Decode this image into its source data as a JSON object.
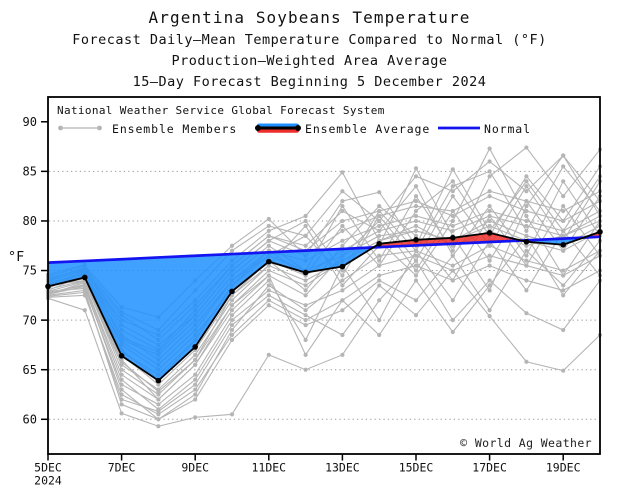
{
  "header": {
    "title": "Argentina Soybeans Temperature",
    "subtitle1": "Forecast Daily–Mean Temperature Compared to Normal (°F)",
    "subtitle2": "Production–Weighted Area Average",
    "subtitle3": "15–Day Forecast Beginning 5 December 2024"
  },
  "legend": {
    "system_label": "National Weather Service Global Forecast System",
    "members_label": "Ensemble Members",
    "average_label": "Ensemble Average",
    "normal_label": "Normal"
  },
  "footer": {
    "copyright": "© World Ag Weather"
  },
  "chart_data": {
    "type": "line",
    "title": "Argentina Soybeans Temperature",
    "subtitle": "Forecast Daily–Mean Temperature Compared to Normal (°F), Production–Weighted Area Average, 15–Day Forecast Beginning 5 December 2024",
    "xlabel": "",
    "ylabel": "°F",
    "xlim": [
      5,
      20
    ],
    "ylim": [
      56.5,
      92.5
    ],
    "grid": "horizontal-dotted",
    "legend_position": "top-left-inside",
    "x_days": [
      5,
      6,
      7,
      8,
      9,
      10,
      11,
      12,
      13,
      14,
      15,
      16,
      17,
      18,
      19,
      20
    ],
    "x_tick_days": [
      5,
      7,
      9,
      11,
      13,
      15,
      17,
      19
    ],
    "x_tick_labels": [
      "5DEC",
      "7DEC",
      "9DEC",
      "11DEC",
      "13DEC",
      "15DEC",
      "17DEC",
      "19DEC"
    ],
    "x_year_label": "2024",
    "y_ticks": [
      60,
      65,
      70,
      75,
      80,
      85,
      90
    ],
    "y_tick_labels": [
      "60",
      "65",
      "70",
      "75",
      "80",
      "85",
      "90"
    ],
    "grid_y": [
      60,
      65,
      70,
      75,
      80,
      85
    ],
    "fill_opacity": 0.85,
    "colors": {
      "members": "#b5b5b5",
      "average": "#000000",
      "normal": "#1414f0",
      "above_fill": "#ee2e2c",
      "below_fill": "#1e90ff",
      "grid": "#9a9a9a",
      "frame": "#000000"
    },
    "series": {
      "normal": {
        "name": "Normal",
        "values": [
          75.8,
          75.97,
          76.14,
          76.32,
          76.49,
          76.66,
          76.84,
          77.01,
          77.18,
          77.36,
          77.53,
          77.7,
          77.88,
          78.05,
          78.22,
          78.4
        ]
      },
      "ensemble_average": {
        "name": "Ensemble Average",
        "values": [
          73.4,
          74.3,
          66.4,
          63.9,
          67.3,
          72.9,
          75.9,
          74.8,
          75.4,
          77.7,
          78.1,
          78.3,
          78.8,
          77.9,
          77.6,
          78.9
        ]
      },
      "ensemble_members": [
        [
          73.0,
          74.5,
          67.0,
          64.0,
          68.0,
          73.5,
          76.5,
          75.0,
          76.5,
          78.5,
          79.0,
          78.0,
          80.0,
          78.5,
          77.5,
          79.5
        ],
        [
          72.5,
          73.0,
          61.5,
          60.0,
          62.5,
          69.0,
          73.5,
          71.0,
          74.0,
          76.5,
          77.0,
          75.5,
          77.5,
          76.0,
          75.0,
          77.0
        ],
        [
          74.0,
          75.0,
          70.5,
          68.0,
          71.5,
          75.5,
          78.5,
          77.0,
          80.0,
          81.0,
          82.0,
          80.5,
          82.5,
          81.0,
          80.0,
          82.0
        ],
        [
          73.5,
          74.0,
          66.0,
          62.0,
          65.5,
          71.5,
          75.0,
          73.5,
          76.0,
          78.0,
          79.5,
          77.5,
          79.0,
          77.5,
          78.5,
          80.0
        ],
        [
          72.8,
          73.5,
          64.0,
          61.0,
          64.0,
          70.0,
          73.0,
          71.5,
          73.0,
          75.5,
          76.5,
          75.0,
          76.5,
          75.5,
          74.5,
          76.5
        ],
        [
          73.2,
          74.8,
          68.5,
          66.0,
          69.5,
          74.0,
          77.0,
          76.0,
          78.0,
          79.5,
          80.5,
          79.5,
          81.0,
          80.0,
          79.0,
          81.0
        ],
        [
          74.2,
          75.2,
          69.5,
          67.5,
          70.5,
          75.0,
          78.0,
          76.5,
          79.0,
          80.5,
          81.5,
          81.0,
          83.0,
          82.0,
          81.0,
          83.0
        ],
        [
          72.3,
          72.5,
          62.5,
          60.5,
          63.0,
          68.5,
          72.0,
          70.0,
          72.0,
          74.5,
          75.5,
          74.0,
          75.5,
          74.0,
          73.0,
          75.0
        ],
        [
          73.8,
          74.6,
          67.5,
          65.0,
          68.5,
          73.0,
          76.0,
          74.5,
          77.0,
          79.0,
          80.0,
          79.0,
          80.5,
          79.5,
          78.5,
          80.5
        ],
        [
          72.6,
          73.8,
          65.5,
          63.0,
          66.5,
          72.0,
          75.5,
          74.0,
          76.0,
          78.0,
          79.0,
          78.0,
          79.5,
          78.0,
          77.0,
          79.0
        ],
        [
          73.6,
          74.9,
          70.0,
          68.5,
          72.0,
          76.0,
          79.0,
          80.5,
          84.9,
          78.0,
          74.5,
          80.0,
          87.3,
          80.5,
          74.5,
          80.0
        ],
        [
          72.2,
          71.0,
          60.6,
          59.3,
          60.2,
          60.5,
          66.5,
          65.0,
          66.5,
          72.0,
          76.0,
          70.0,
          74.0,
          70.7,
          69.0,
          74.0
        ],
        [
          74.4,
          75.5,
          71.3,
          70.3,
          74.0,
          77.5,
          80.2,
          76.5,
          82.0,
          82.9,
          77.5,
          85.2,
          79.0,
          84.0,
          79.0,
          84.5
        ],
        [
          73.4,
          74.2,
          66.5,
          63.5,
          67.0,
          72.5,
          75.5,
          79.5,
          73.5,
          77.5,
          85.3,
          78.5,
          73.0,
          81.5,
          86.6,
          80.5
        ],
        [
          72.9,
          73.2,
          63.5,
          61.5,
          64.5,
          70.5,
          74.0,
          68.0,
          75.5,
          70.0,
          77.0,
          72.0,
          78.0,
          73.0,
          79.0,
          74.5
        ],
        [
          74.6,
          75.6,
          68.0,
          66.5,
          70.0,
          74.5,
          77.5,
          75.0,
          81.5,
          76.0,
          82.5,
          77.0,
          84.5,
          87.4,
          82.5,
          87.2
        ],
        [
          73.1,
          74.0,
          65.0,
          62.5,
          66.0,
          71.5,
          74.5,
          72.5,
          76.5,
          80.0,
          75.0,
          81.0,
          76.0,
          82.0,
          77.0,
          82.5
        ],
        [
          72.4,
          72.8,
          62.0,
          60.8,
          63.5,
          69.5,
          72.5,
          70.5,
          68.5,
          73.5,
          70.5,
          75.0,
          70.4,
          65.8,
          64.9,
          68.5
        ],
        [
          73.9,
          75.1,
          69.0,
          67.0,
          71.0,
          75.5,
          78.5,
          77.5,
          81.0,
          79.0,
          83.5,
          76.5,
          81.5,
          76.5,
          84.0,
          78.5
        ],
        [
          73.3,
          74.4,
          67.8,
          65.5,
          69.0,
          74.0,
          76.5,
          78.5,
          74.5,
          80.5,
          76.0,
          82.5,
          77.5,
          83.5,
          78.0,
          84.0
        ],
        [
          72.7,
          73.6,
          64.5,
          62.0,
          65.5,
          71.0,
          74.5,
          66.5,
          72.0,
          68.5,
          74.0,
          68.8,
          73.5,
          78.5,
          72.5,
          77.0
        ],
        [
          74.1,
          75.3,
          70.8,
          69.0,
          73.0,
          77.0,
          79.5,
          78.5,
          83.0,
          80.0,
          84.5,
          83.0,
          86.0,
          83.0,
          86.6,
          82.0
        ],
        [
          73.7,
          74.3,
          66.8,
          64.5,
          68.0,
          73.5,
          77.0,
          74.5,
          79.5,
          75.5,
          81.0,
          84.0,
          78.5,
          84.5,
          80.0,
          85.5
        ],
        [
          72.9,
          73.9,
          65.8,
          62.8,
          66.0,
          72.5,
          76.0,
          73.0,
          77.5,
          81.5,
          78.5,
          74.0,
          80.5,
          75.5,
          81.5,
          76.5
        ],
        [
          73.5,
          74.7,
          68.2,
          66.8,
          70.5,
          75.0,
          78.0,
          80.0,
          75.0,
          81.0,
          77.0,
          83.5,
          85.0,
          79.0,
          85.5,
          81.0
        ],
        [
          72.6,
          73.4,
          63.0,
          60.0,
          62.0,
          68.0,
          71.5,
          69.5,
          71.0,
          74.0,
          72.0,
          76.5,
          71.0,
          77.0,
          73.5,
          78.0
        ]
      ]
    }
  }
}
